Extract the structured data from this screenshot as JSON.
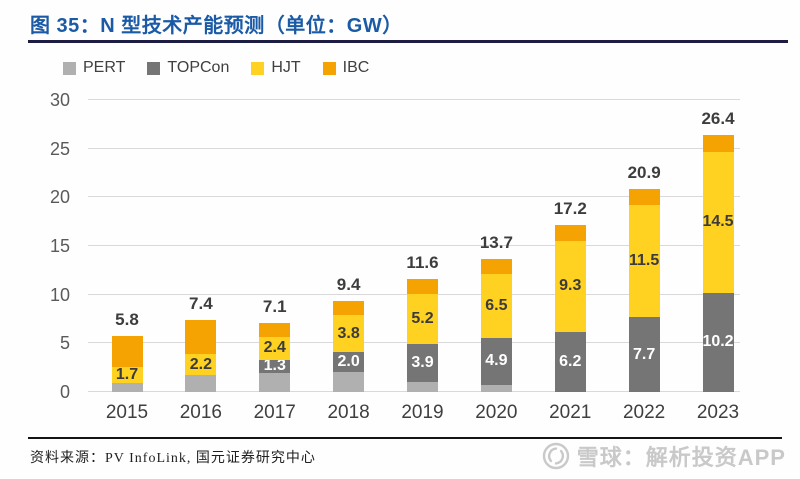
{
  "header": {
    "title": "图 35：N 型技术产能预测（单位：GW）"
  },
  "chart_data": {
    "type": "bar",
    "stacked": true,
    "title": "图 35：N 型技术产能预测（单位：GW）",
    "unit": "GW",
    "categories": [
      "2015",
      "2016",
      "2017",
      "2018",
      "2019",
      "2020",
      "2021",
      "2022",
      "2023"
    ],
    "series": [
      {
        "name": "PERT",
        "color": "#b0b0b0",
        "label_color": "#ffffff",
        "values": [
          0.9,
          1.7,
          2.0,
          2.1,
          1.0,
          0.7,
          0,
          0,
          0
        ],
        "labels": [
          "",
          "",
          "",
          "",
          "",
          "",
          "",
          "",
          ""
        ]
      },
      {
        "name": "TOPCon",
        "color": "#757575",
        "label_color": "#ffffff",
        "values": [
          0,
          0,
          1.3,
          2.0,
          3.9,
          4.9,
          6.2,
          7.7,
          10.2
        ],
        "labels": [
          "",
          "",
          "1.3",
          "2.0",
          "3.9",
          "4.9",
          "6.2",
          "7.7",
          "10.2"
        ]
      },
      {
        "name": "HJT",
        "color": "#ffd120",
        "label_color": "#3b3b3b",
        "values": [
          1.7,
          2.2,
          2.4,
          3.8,
          5.2,
          6.5,
          9.3,
          11.5,
          14.5
        ],
        "labels": [
          "1.7",
          "2.2",
          "2.4",
          "3.8",
          "5.2",
          "6.5",
          "9.3",
          "11.5",
          "14.5"
        ]
      },
      {
        "name": "IBC",
        "color": "#f5a302",
        "label_color": "#3b3b3b",
        "values": [
          3.2,
          3.5,
          1.4,
          1.5,
          1.5,
          1.6,
          1.7,
          1.7,
          1.7
        ],
        "labels": [
          "",
          "",
          "",
          "",
          "",
          "",
          "",
          "",
          ""
        ]
      }
    ],
    "totals": [
      "5.8",
      "7.4",
      "7.1",
      "9.4",
      "11.6",
      "13.7",
      "17.2",
      "20.9",
      "26.4"
    ],
    "yticks": [
      0,
      5,
      10,
      15,
      20,
      25,
      30
    ],
    "ylim": [
      0,
      30
    ],
    "grid": true,
    "legend_position": "top-left"
  },
  "footer": {
    "source": "资料来源：PV InfoLink, 国元证券研究中心"
  },
  "watermark": {
    "icon": "snowball-logo",
    "text": "雪球：解析投资APP"
  }
}
